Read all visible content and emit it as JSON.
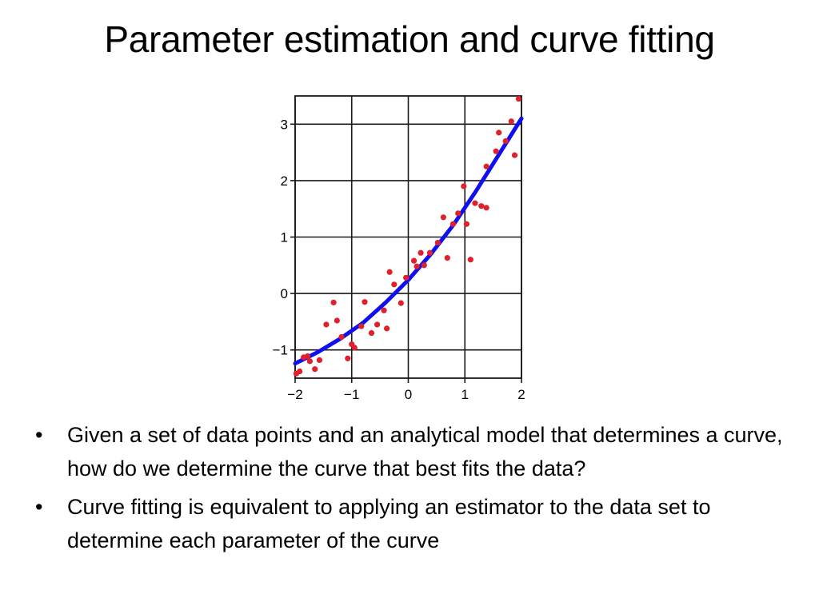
{
  "slide": {
    "title": "Parameter estimation and curve fitting",
    "bullets": [
      "Given a set of data points and an analytical model that determines a curve, how do we determine the curve that best fits the data?",
      "Curve fitting is equivalent to applying an estimator to the data set to determine each parameter of the curve"
    ],
    "bullet_glyph": "•"
  },
  "chart_data": {
    "type": "scatter",
    "xlim": [
      -2,
      2
    ],
    "ylim": [
      -1.5,
      3.5
    ],
    "grid": true,
    "x_ticks": [
      -2,
      -1,
      0,
      1,
      2
    ],
    "y_ticks": [
      -1,
      0,
      1,
      2,
      3
    ],
    "x_tick_labels": [
      "−2",
      "−1",
      "0",
      "1",
      "2"
    ],
    "y_tick_labels": [
      "−1",
      "0",
      "1",
      "2",
      "3"
    ],
    "point_color": "#e0202a",
    "curve_color": "#1010ee",
    "points": [
      [
        -1.98,
        -1.42
      ],
      [
        -1.92,
        -1.38
      ],
      [
        -1.85,
        -1.13
      ],
      [
        -1.78,
        -1.11
      ],
      [
        -1.74,
        -1.2
      ],
      [
        -1.65,
        -1.34
      ],
      [
        -1.57,
        -1.18
      ],
      [
        -1.45,
        -0.55
      ],
      [
        -1.32,
        -0.16
      ],
      [
        -1.26,
        -0.48
      ],
      [
        -1.18,
        -0.77
      ],
      [
        -1.07,
        -1.15
      ],
      [
        -1.0,
        -0.9
      ],
      [
        -0.95,
        -0.96
      ],
      [
        -0.83,
        -0.58
      ],
      [
        -0.77,
        -0.15
      ],
      [
        -0.65,
        -0.7
      ],
      [
        -0.55,
        -0.55
      ],
      [
        -0.43,
        -0.3
      ],
      [
        -0.38,
        -0.62
      ],
      [
        -0.33,
        0.38
      ],
      [
        -0.25,
        0.16
      ],
      [
        -0.13,
        -0.17
      ],
      [
        -0.04,
        0.28
      ],
      [
        0.1,
        0.58
      ],
      [
        0.15,
        0.48
      ],
      [
        0.22,
        0.72
      ],
      [
        0.28,
        0.5
      ],
      [
        0.38,
        0.72
      ],
      [
        0.52,
        0.9
      ],
      [
        0.62,
        1.35
      ],
      [
        0.69,
        0.63
      ],
      [
        0.79,
        1.23
      ],
      [
        0.88,
        1.42
      ],
      [
        0.98,
        1.9
      ],
      [
        1.03,
        1.23
      ],
      [
        1.1,
        0.6
      ],
      [
        1.18,
        1.6
      ],
      [
        1.29,
        1.55
      ],
      [
        1.38,
        1.52
      ],
      [
        1.38,
        2.25
      ],
      [
        1.55,
        2.52
      ],
      [
        1.6,
        2.85
      ],
      [
        1.72,
        2.7
      ],
      [
        1.82,
        3.05
      ],
      [
        1.88,
        2.45
      ],
      [
        1.95,
        3.45
      ]
    ],
    "curve": [
      [
        -2.0,
        -1.24
      ],
      [
        -1.6,
        -1.04
      ],
      [
        -1.2,
        -0.8
      ],
      [
        -0.8,
        -0.52
      ],
      [
        -0.4,
        -0.16
      ],
      [
        0.0,
        0.24
      ],
      [
        0.4,
        0.7
      ],
      [
        0.8,
        1.22
      ],
      [
        1.2,
        1.82
      ],
      [
        1.6,
        2.46
      ],
      [
        2.0,
        3.1
      ]
    ]
  }
}
